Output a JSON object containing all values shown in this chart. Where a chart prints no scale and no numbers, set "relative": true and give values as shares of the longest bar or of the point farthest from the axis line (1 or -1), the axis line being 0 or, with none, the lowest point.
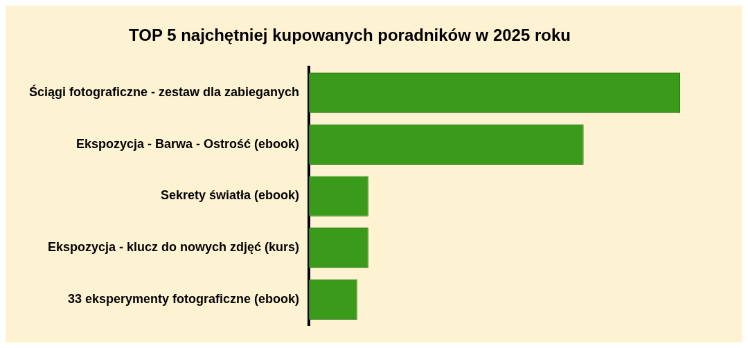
{
  "chart_data": {
    "type": "bar",
    "orientation": "horizontal",
    "relative": true,
    "title": "TOP 5 najchętniej kupowanych poradników w 2025 roku",
    "categories": [
      "Ściągi fotograficzne - zestaw dla zabieganych",
      "Ekspozycja - Barwa - Ostrość (ebook)",
      "Sekrety światła (ebook)",
      "Ekspozycja - klucz do nowych zdjęć (kurs)",
      "33 eksperymenty fotograficzne (ebook)"
    ],
    "values": [
      1,
      0.74,
      0.16,
      0.16,
      0.13
    ],
    "color": "#3a9a1a",
    "grid": false,
    "legend": false
  }
}
